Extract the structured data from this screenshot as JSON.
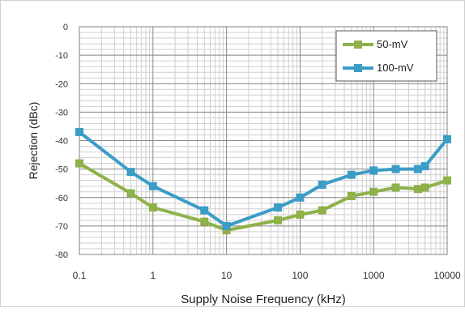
{
  "chart_data": {
    "type": "line",
    "title": "",
    "xlabel": "Supply Noise Frequency (kHz)",
    "ylabel": "Rejection (dBc)",
    "x_scale": "log",
    "xlim": [
      0.1,
      10000
    ],
    "ylim": [
      -80,
      0
    ],
    "x_ticks": [
      "0.1",
      "1",
      "10",
      "100",
      "1000",
      "10000"
    ],
    "y_ticks": [
      "0",
      "-10",
      "-20",
      "-30",
      "-40",
      "-50",
      "-60",
      "-70",
      "-80"
    ],
    "grid": true,
    "legend_position": "top-right",
    "series": [
      {
        "name": "50-mV",
        "color": "#8fb14a",
        "x": [
          0.1,
          0.5,
          1,
          5,
          10,
          50,
          100,
          200,
          500,
          1000,
          2000,
          4000,
          5000,
          10000
        ],
        "y": [
          -48,
          -58.5,
          -63.5,
          -68.5,
          -71.5,
          -68,
          -66,
          -64.5,
          -59.5,
          -58,
          -56.5,
          -57,
          -56.5,
          -54
        ]
      },
      {
        "name": "100-mV",
        "color": "#3b9dc6",
        "x": [
          0.1,
          0.5,
          1,
          5,
          10,
          50,
          100,
          200,
          500,
          1000,
          2000,
          4000,
          5000,
          10000
        ],
        "y": [
          -37,
          -51,
          -56,
          -64.5,
          -70,
          -63.5,
          -60,
          -55.5,
          -52,
          -50.5,
          -50,
          -50,
          -49,
          -39.5
        ]
      }
    ]
  }
}
